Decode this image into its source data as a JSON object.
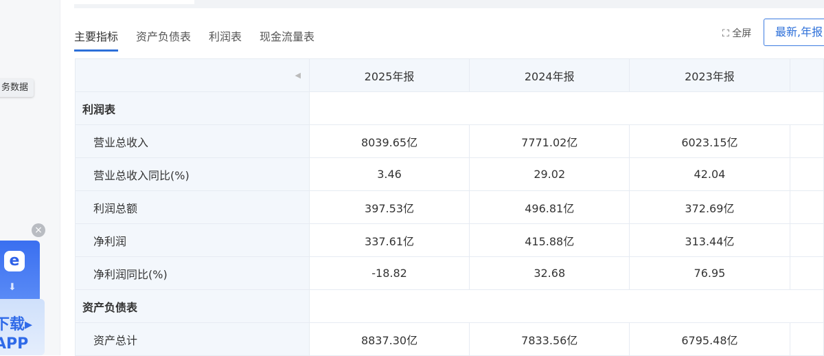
{
  "sidebar": {
    "tooltip": "务数据",
    "close": "×",
    "app_line1": "下载▸",
    "app_line2": "APP"
  },
  "tabs": [
    {
      "label": "主要指标",
      "active": true
    },
    {
      "label": "资产负债表"
    },
    {
      "label": "利润表"
    },
    {
      "label": "现金流量表"
    }
  ],
  "toolbar": {
    "fullscreen_icon": "⛶",
    "fullscreen": "全屏",
    "period_select": "最新,年报"
  },
  "table": {
    "collapse_icon": "◀",
    "columns": [
      "2025年报",
      "2024年报",
      "2023年报"
    ],
    "rows": [
      {
        "label": "利润表",
        "section": true
      },
      {
        "label": "营业总收入",
        "values": [
          "8039.65亿",
          "7771.02亿",
          "6023.15亿"
        ]
      },
      {
        "label": "营业总收入同比(%)",
        "values": [
          "3.46",
          "29.02",
          "42.04"
        ]
      },
      {
        "label": "利润总额",
        "values": [
          "397.53亿",
          "496.81亿",
          "372.69亿"
        ]
      },
      {
        "label": "净利润",
        "values": [
          "337.61亿",
          "415.88亿",
          "313.44亿"
        ]
      },
      {
        "label": "净利润同比(%)",
        "values": [
          "-18.82",
          "32.68",
          "76.95"
        ]
      },
      {
        "label": "资产负债表",
        "section": true
      },
      {
        "label": "资产总计",
        "values": [
          "8837.30亿",
          "7833.56亿",
          "6795.48亿"
        ]
      }
    ]
  }
}
